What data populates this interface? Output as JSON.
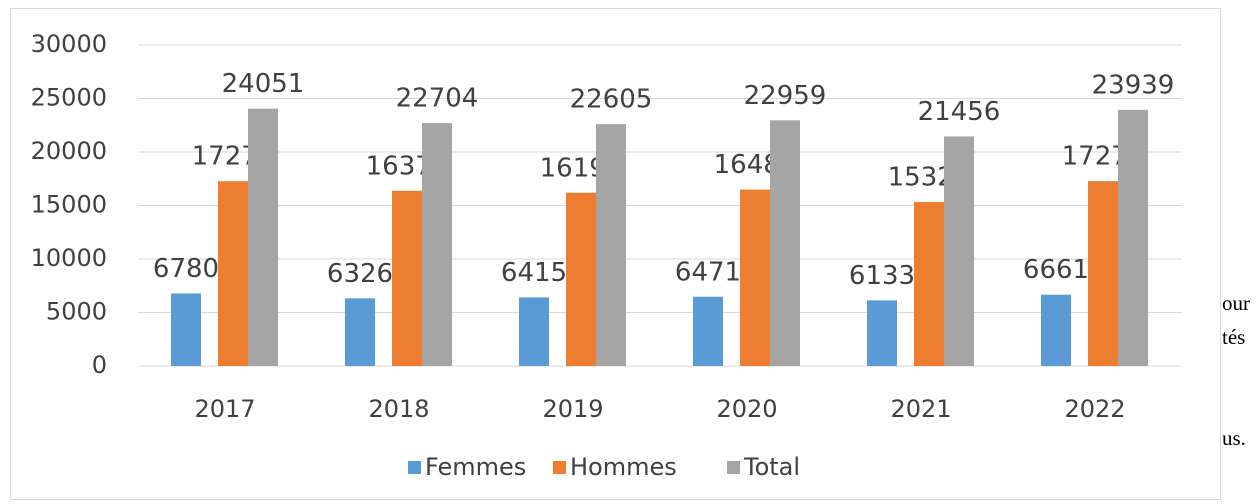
{
  "chart_data": {
    "type": "bar",
    "categories": [
      "2017",
      "2018",
      "2019",
      "2020",
      "2021",
      "2022"
    ],
    "series": [
      {
        "name": "Femmes",
        "color": "#5b9bd5",
        "values": [
          6780,
          6326,
          6415,
          6471,
          6133,
          6661
        ]
      },
      {
        "name": "Hommes",
        "color": "#ed7d31",
        "values": [
          17271,
          16378,
          16190,
          16488,
          15323,
          17278
        ]
      },
      {
        "name": "Total",
        "color": "#a5a5a5",
        "values": [
          24051,
          22704,
          22605,
          22959,
          21456,
          23939
        ]
      }
    ],
    "ylim": [
      0,
      30000
    ],
    "yticks": [
      0,
      5000,
      10000,
      15000,
      20000,
      25000,
      30000
    ],
    "grid": true,
    "legend": "bottom"
  },
  "page_text": [
    "our",
    "tés",
    "us."
  ]
}
